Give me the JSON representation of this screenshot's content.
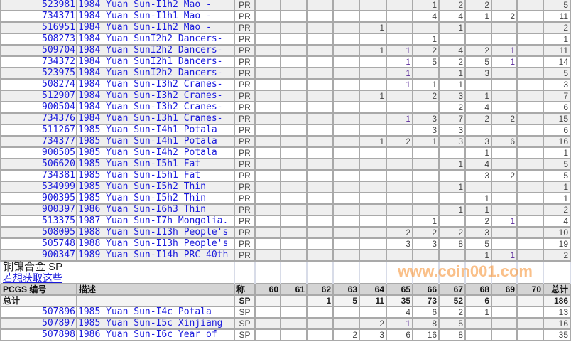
{
  "grade_columns": [
    "60",
    "61",
    "62",
    "63",
    "64",
    "65",
    "66",
    "67",
    "68",
    "69",
    "70"
  ],
  "pr_rows": [
    {
      "id": "523981",
      "desc": "1984 Yuan Sun-I1h2 Mao -",
      "type": "PR",
      "grades": [
        "",
        "",
        "",
        "",
        "",
        "",
        "1",
        "2",
        "2",
        "",
        ""
      ],
      "total": "5"
    },
    {
      "id": "734371",
      "desc": "1984 Yuan Sun-I1h1 Mao -",
      "type": "PR",
      "grades": [
        "",
        "",
        "",
        "",
        "",
        "",
        "4",
        "4",
        "1",
        "2",
        ""
      ],
      "total": "11"
    },
    {
      "id": "516951",
      "desc": "1984 Yuan Sun-I1h2 Mao -",
      "type": "PR",
      "grades": [
        "",
        "",
        "",
        "",
        "1",
        "",
        "",
        "1",
        "",
        "",
        ""
      ],
      "total": "2"
    },
    {
      "id": "508273",
      "desc": "1984 Yuan SunI2h2 Dancers-",
      "type": "PR",
      "grades": [
        "",
        "",
        "",
        "",
        "",
        "",
        "1",
        "",
        "",
        "",
        ""
      ],
      "total": "1"
    },
    {
      "id": "509704",
      "desc": "1984 Yuan SunI2h2 Dancers-",
      "type": "PR",
      "grades": [
        "",
        "",
        "",
        "",
        "1",
        "1",
        "2",
        "4",
        "2",
        "1",
        ""
      ],
      "total": "11"
    },
    {
      "id": "734372",
      "desc": "1984 Yuan SunI2h1 Dancers-",
      "type": "PR",
      "grades": [
        "",
        "",
        "",
        "",
        "",
        "1",
        "5",
        "2",
        "5",
        "1",
        ""
      ],
      "total": "14"
    },
    {
      "id": "523975",
      "desc": "1984 Yuan SunI2h2 Dancers-",
      "type": "PR",
      "grades": [
        "",
        "",
        "",
        "",
        "",
        "1",
        "",
        "1",
        "3",
        "",
        ""
      ],
      "total": "5"
    },
    {
      "id": "508274",
      "desc": "1984 Yuan Sun-I3h2 Cranes-",
      "type": "PR",
      "grades": [
        "",
        "",
        "",
        "",
        "",
        "1",
        "1",
        "1",
        "",
        "",
        ""
      ],
      "total": "3"
    },
    {
      "id": "512907",
      "desc": "1984 Yuan Sun-I3h2 Cranes-",
      "type": "PR",
      "grades": [
        "",
        "",
        "",
        "",
        "1",
        "",
        "2",
        "3",
        "1",
        "",
        ""
      ],
      "total": "7"
    },
    {
      "id": "900504",
      "desc": "1984 Yuan Sun-I3h2 Cranes-",
      "type": "PR",
      "grades": [
        "",
        "",
        "",
        "",
        "",
        "",
        "",
        "2",
        "4",
        "",
        ""
      ],
      "total": "6"
    },
    {
      "id": "734376",
      "desc": "1984 Yuan Sun-I3h1 Cranes-",
      "type": "PR",
      "grades": [
        "",
        "",
        "",
        "",
        "",
        "1",
        "3",
        "7",
        "2",
        "2",
        ""
      ],
      "total": "15"
    },
    {
      "id": "511267",
      "desc": "1985 Yuan Sun-I4h1 Potala",
      "type": "PR",
      "grades": [
        "",
        "",
        "",
        "",
        "",
        "",
        "3",
        "3",
        "",
        "",
        ""
      ],
      "total": "6"
    },
    {
      "id": "734377",
      "desc": "1985 Yuan Sun-I4h1 Potala",
      "type": "PR",
      "grades": [
        "",
        "",
        "",
        "",
        "1",
        "2",
        "1",
        "3",
        "3",
        "6",
        ""
      ],
      "total": "16"
    },
    {
      "id": "900505",
      "desc": "1985 Yuan Sun-I4h2 Potala",
      "type": "PR",
      "grades": [
        "",
        "",
        "",
        "",
        "",
        "",
        "",
        "",
        "1",
        "",
        ""
      ],
      "total": "1"
    },
    {
      "id": "506620",
      "desc": "1985 Yuan Sun-I5h1 Fat",
      "type": "PR",
      "grades": [
        "",
        "",
        "",
        "",
        "",
        "",
        "",
        "1",
        "4",
        "",
        ""
      ],
      "total": "5"
    },
    {
      "id": "734381",
      "desc": "1985 Yuan Sun-I5h1 Fat",
      "type": "PR",
      "grades": [
        "",
        "",
        "",
        "",
        "",
        "",
        "",
        "",
        "3",
        "2",
        ""
      ],
      "total": "5"
    },
    {
      "id": "534999",
      "desc": "1985 Yuan Sun-I5h2 Thin",
      "type": "PR",
      "grades": [
        "",
        "",
        "",
        "",
        "",
        "",
        "",
        "1",
        "",
        "",
        ""
      ],
      "total": "1"
    },
    {
      "id": "900395",
      "desc": "1985 Yuan Sun-I5h2 Thin",
      "type": "PR",
      "grades": [
        "",
        "",
        "",
        "",
        "",
        "",
        "",
        "",
        "1",
        "",
        ""
      ],
      "total": "1"
    },
    {
      "id": "900397",
      "desc": "1986 Yuan Sun-I6h3 Thin",
      "type": "PR",
      "grades": [
        "",
        "",
        "",
        "",
        "",
        "",
        "",
        "1",
        "1",
        "",
        ""
      ],
      "total": "2"
    },
    {
      "id": "513375",
      "desc": "1987 Yuan Sun-I7h Mongolia.",
      "type": "PR",
      "grades": [
        "",
        "",
        "",
        "",
        "",
        "",
        "1",
        "",
        "2",
        "1",
        ""
      ],
      "total": "4"
    },
    {
      "id": "508095",
      "desc": "1988 Yuan Sun-I13h People's",
      "type": "PR",
      "grades": [
        "",
        "",
        "",
        "",
        "",
        "2",
        "2",
        "2",
        "3",
        "",
        ""
      ],
      "total": "10"
    },
    {
      "id": "505748",
      "desc": "1988 Yuan Sun-I13h People's",
      "type": "PR",
      "grades": [
        "",
        "",
        "",
        "",
        "",
        "3",
        "3",
        "8",
        "5",
        "",
        ""
      ],
      "total": "19"
    },
    {
      "id": "900347",
      "desc": "1989 Yuan Sun-I14h PRC 40th",
      "type": "PR",
      "grades": [
        "",
        "",
        "",
        "",
        "",
        "",
        "",
        "",
        "1",
        "1",
        ""
      ],
      "total": "2"
    }
  ],
  "sp_section": {
    "title": "铜镍合金 SP",
    "link": "若想获取这些",
    "header": {
      "pcgs": "PCGS 编号",
      "desc": "描述",
      "type": "称",
      "total": "总计"
    },
    "totals": {
      "label": "总计",
      "type": "SP",
      "grades": [
        "",
        "",
        "1",
        "5",
        "11",
        "35",
        "73",
        "52",
        "6",
        "",
        ""
      ],
      "total": "186"
    },
    "rows": [
      {
        "id": "507896",
        "desc": "1985 Yuan Sun-I4c Potala",
        "type": "SP",
        "grades": [
          "",
          "",
          "",
          "",
          "",
          "4",
          "6",
          "2",
          "1",
          "",
          ""
        ],
        "total": "13"
      },
      {
        "id": "507897",
        "desc": "1985 Yuan Sun-I5c Xinjiang",
        "type": "SP",
        "grades": [
          "",
          "",
          "",
          "",
          "2",
          "1",
          "8",
          "5",
          "",
          "",
          ""
        ],
        "total": "16"
      },
      {
        "id": "507898",
        "desc": "1986 Yuan Sun-I6c Year of",
        "type": "SP",
        "grades": [
          "",
          "",
          "",
          "2",
          "3",
          "6",
          "16",
          "8",
          "",
          "",
          ""
        ],
        "total": "35"
      }
    ]
  },
  "watermark": "www.coin001.com",
  "colors": {
    "link": "#1a1adc",
    "visited": "#5a2a9a",
    "row_alt": "#efefef",
    "header": "#d4d4d4",
    "watermark": "#f58c28"
  }
}
